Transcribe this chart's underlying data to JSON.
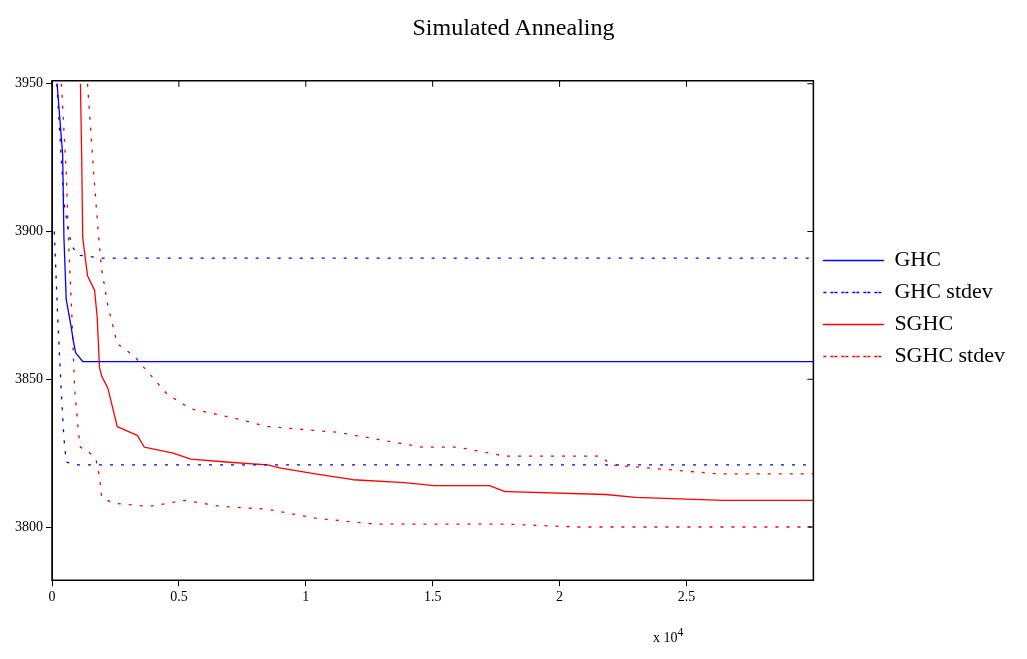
{
  "chart_data": {
    "type": "line",
    "title": "Simulated Annealing",
    "annotations": [
      "x 10$^{4}$"
    ],
    "xlim": [
      0,
      3
    ],
    "xticks": [
      0,
      0.5,
      1,
      1.5,
      2,
      2.5
    ],
    "ylim": [
      3782,
      3951
    ],
    "yticks": [
      3800,
      3850,
      3900,
      3950
    ],
    "grid": false,
    "legend": "right",
    "marker": "none",
    "series": [
      {
        "name": "GHC",
        "color": "#0000ff",
        "line_style": "solid",
        "x": [
          0.02,
          0.042,
          0.047,
          0.056,
          0.075,
          0.084,
          0.093,
          0.121,
          3.0
        ],
        "values": [
          3950,
          3926,
          3898,
          3877,
          3868,
          3863,
          3859,
          3856,
          3856
        ]
      },
      {
        "name": "GHC stdev",
        "color": "#0000ff",
        "line_style": "dotted",
        "x": [
          0.019,
          0.033,
          0.047,
          0.065,
          0.079,
          0.103,
          0.2,
          3.0
        ],
        "values": [
          3950,
          3930,
          3910,
          3900,
          3895,
          3892,
          3891,
          3891
        ]
      },
      {
        "color": "#0000ff",
        "line_style": "dotted",
        "x": [
          0.009,
          0.023,
          0.037,
          0.047,
          0.056,
          0.103,
          3.0
        ],
        "values": [
          3900,
          3870,
          3845,
          3830,
          3822,
          3821,
          3821
        ]
      },
      {
        "name": "SGHC",
        "color": "#ff0000",
        "line_style": "solid",
        "x": [
          0.112,
          0.117,
          0.121,
          0.14,
          0.168,
          0.178,
          0.187,
          0.196,
          0.22,
          0.257,
          0.336,
          0.364,
          0.477,
          0.547,
          0.687,
          0.85,
          0.897,
          1.037,
          1.187,
          1.388,
          1.505,
          1.724,
          1.785,
          2.182,
          2.299,
          2.645,
          3.0
        ],
        "values": [
          3950,
          3925,
          3898,
          3885,
          3880,
          3871,
          3854,
          3851,
          3847,
          3834,
          3831,
          3827,
          3825,
          3823,
          3822,
          3821,
          3820,
          3818,
          3816,
          3815,
          3814,
          3814,
          3812,
          3811,
          3810,
          3809,
          3809
        ]
      },
      {
        "name": "SGHC stdev",
        "color": "#ff0000",
        "line_style": "dotted",
        "x": [
          0.14,
          0.164,
          0.182,
          0.196,
          0.22,
          0.257,
          0.322,
          0.453,
          0.547,
          0.71,
          0.85,
          1.131,
          1.458,
          1.598,
          1.785,
          2.159,
          2.206,
          2.346,
          2.626,
          3.0
        ],
        "values": [
          3950,
          3920,
          3900,
          3887,
          3875,
          3862,
          3858,
          3845,
          3840,
          3837,
          3834,
          3832,
          3827,
          3827,
          3824,
          3824,
          3821,
          3820,
          3818,
          3818
        ]
      },
      {
        "color": "#ff0000",
        "line_style": "dotted",
        "x": [
          0.037,
          0.056,
          0.065,
          0.079,
          0.089,
          0.103,
          0.112,
          0.15,
          0.173,
          0.187,
          0.196,
          0.243,
          0.383,
          0.523,
          0.664,
          0.85,
          1.037,
          1.271,
          1.598,
          1.785,
          2.065,
          2.252,
          3.0
        ],
        "values": [
          3950,
          3920,
          3897,
          3870,
          3847,
          3833,
          3827,
          3825,
          3823,
          3817,
          3810,
          3808,
          3807,
          3809,
          3807,
          3806,
          3803,
          3801,
          3801,
          3801,
          3800,
          3800,
          3800
        ]
      }
    ]
  }
}
